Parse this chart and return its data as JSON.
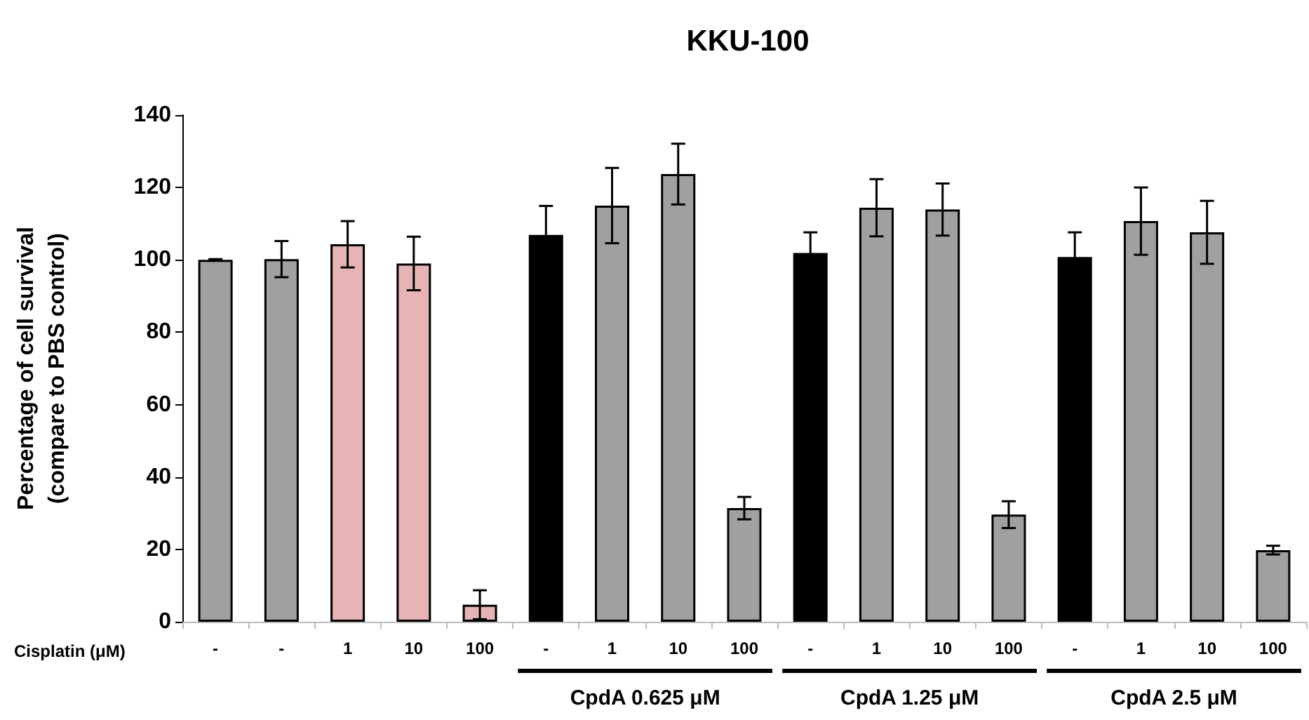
{
  "chart_data": {
    "type": "bar",
    "title": "KKU-100",
    "ylabel": "Percentage of cell survival\n(compare to PBS control)",
    "categories": [
      "-",
      "-",
      "1",
      "10",
      "100",
      "-",
      "1",
      "10",
      "100",
      "-",
      "1",
      "10",
      "100",
      "-",
      "1",
      "10",
      "100"
    ],
    "values": [
      100,
      100.2,
      104.3,
      99,
      4.7,
      106.9,
      115,
      123.7,
      31.4,
      101.9,
      114.4,
      113.9,
      29.6,
      100.8,
      110.7,
      107.6,
      19.8
    ],
    "errors": [
      0.2,
      5,
      6.4,
      7.4,
      4,
      8,
      10.4,
      8.4,
      3.1,
      5.7,
      7.9,
      7.2,
      3.7,
      6.8,
      9.3,
      8.7,
      1.2
    ],
    "colors": [
      "#a0a0a0",
      "#a0a0a0",
      "#e6b4b4",
      "#e6b4b4",
      "#e6b4b4",
      "#000000",
      "#a0a0a0",
      "#a0a0a0",
      "#a0a0a0",
      "#000000",
      "#a0a0a0",
      "#a0a0a0",
      "#a0a0a0",
      "#000000",
      "#a0a0a0",
      "#a0a0a0",
      "#a0a0a0"
    ],
    "ylim": [
      0,
      140
    ],
    "yticks": [
      0,
      20,
      40,
      60,
      80,
      100,
      120,
      140
    ],
    "annotations": [
      "Cisplatin (μM)",
      "CpdA 0.625 μM",
      "CpdA 1.25 μM",
      "CpdA 2.5 μM"
    ]
  }
}
